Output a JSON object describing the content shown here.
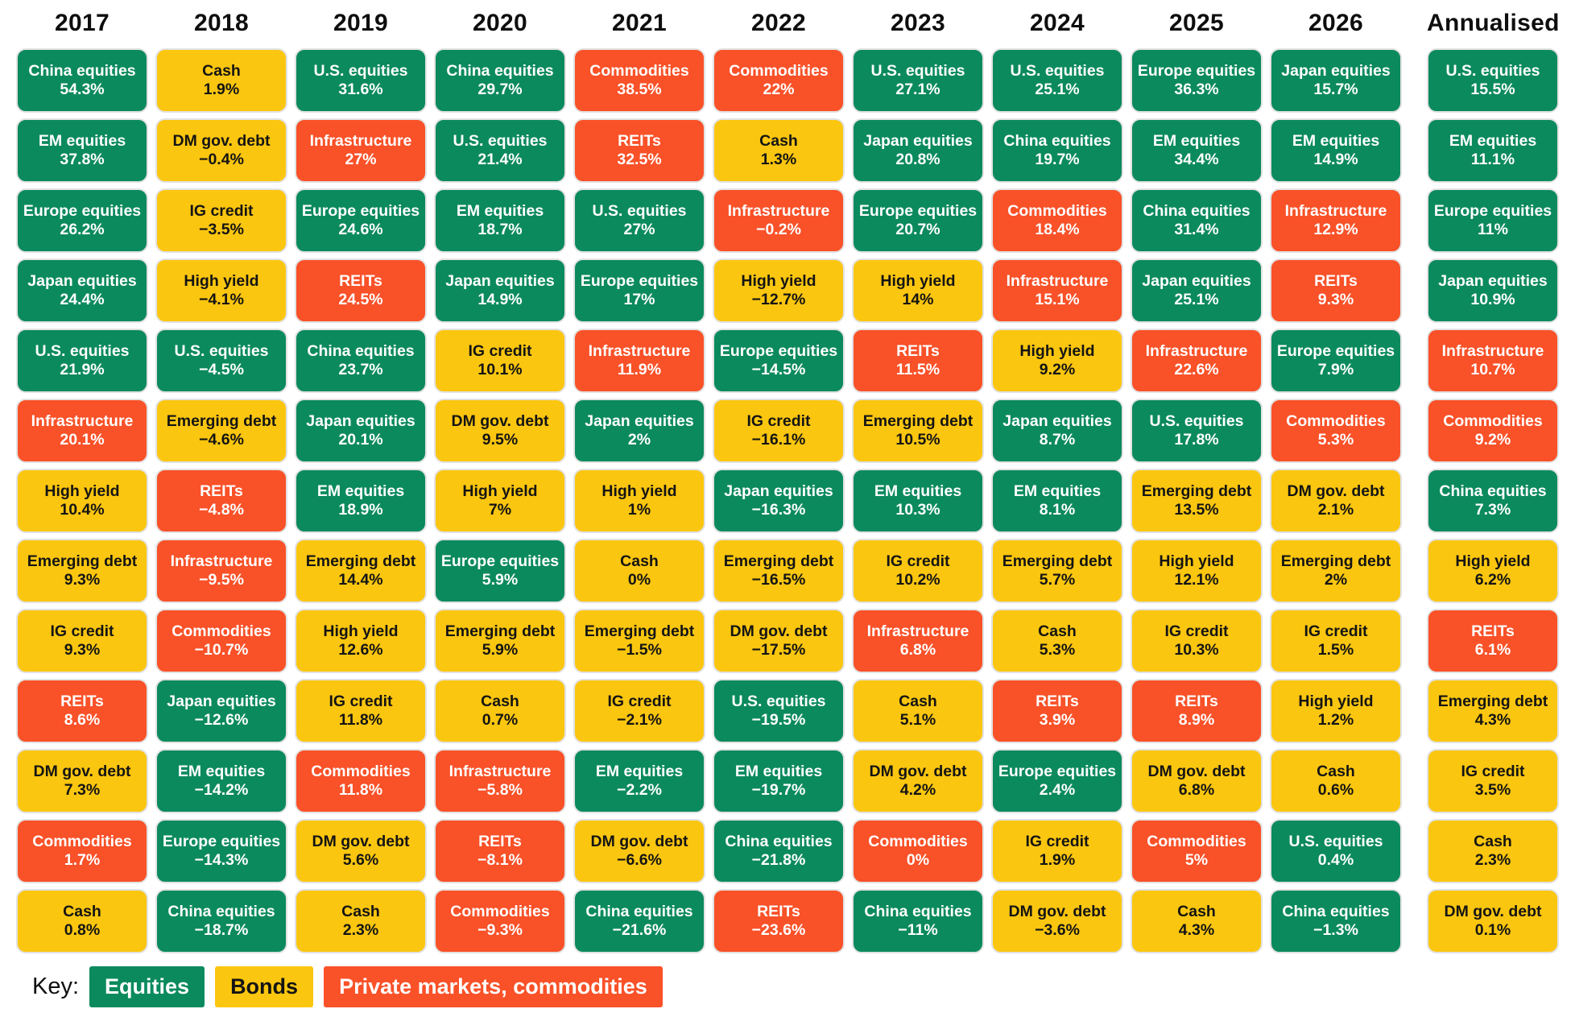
{
  "colors": {
    "equities": "#0b8a5e",
    "bonds": "#fbc60f",
    "private": "#f95128"
  },
  "key": {
    "label": "Key:",
    "items": [
      {
        "label": "Equities",
        "category": "equities"
      },
      {
        "label": "Bonds",
        "category": "bonds"
      },
      {
        "label": "Private markets, commodities",
        "category": "private"
      }
    ]
  },
  "asset_categories": {
    "China equities": "equities",
    "EM equities": "equities",
    "Europe equities": "equities",
    "Japan equities": "equities",
    "U.S. equities": "equities",
    "Cash": "bonds",
    "DM gov. debt": "bonds",
    "IG credit": "bonds",
    "High yield": "bonds",
    "Emerging debt": "bonds",
    "Infrastructure": "private",
    "REITs": "private",
    "Commodities": "private"
  },
  "chart_data": {
    "type": "table",
    "description_unit": "percent annual return",
    "column_headers": [
      "2017",
      "2018",
      "2019",
      "2020",
      "2021",
      "2022",
      "2023",
      "2024",
      "2025",
      "2026",
      "Annualised"
    ],
    "columns": [
      {
        "header": "2017",
        "cells": [
          [
            "China equities",
            54.3
          ],
          [
            "EM equities",
            37.8
          ],
          [
            "Europe equities",
            26.2
          ],
          [
            "Japan equities",
            24.4
          ],
          [
            "U.S. equities",
            21.9
          ],
          [
            "Infrastructure",
            20.1
          ],
          [
            "High yield",
            10.4
          ],
          [
            "Emerging debt",
            9.3
          ],
          [
            "IG credit",
            9.3
          ],
          [
            "REITs",
            8.6
          ],
          [
            "DM gov. debt",
            7.3
          ],
          [
            "Commodities",
            1.7
          ],
          [
            "Cash",
            0.8
          ]
        ]
      },
      {
        "header": "2018",
        "cells": [
          [
            "Cash",
            1.9
          ],
          [
            "DM gov. debt",
            -0.4
          ],
          [
            "IG credit",
            -3.5
          ],
          [
            "High yield",
            -4.1
          ],
          [
            "U.S. equities",
            -4.5
          ],
          [
            "Emerging debt",
            -4.6
          ],
          [
            "REITs",
            -4.8
          ],
          [
            "Infrastructure",
            -9.5
          ],
          [
            "Commodities",
            -10.7
          ],
          [
            "Japan equities",
            -12.6
          ],
          [
            "EM equities",
            -14.2
          ],
          [
            "Europe equities",
            -14.3
          ],
          [
            "China equities",
            -18.7
          ]
        ]
      },
      {
        "header": "2019",
        "cells": [
          [
            "U.S. equities",
            31.6
          ],
          [
            "Infrastructure",
            27
          ],
          [
            "Europe equities",
            24.6
          ],
          [
            "REITs",
            24.5
          ],
          [
            "China equities",
            23.7
          ],
          [
            "Japan equities",
            20.1
          ],
          [
            "EM equities",
            18.9
          ],
          [
            "Emerging debt",
            14.4
          ],
          [
            "High yield",
            12.6
          ],
          [
            "IG credit",
            11.8
          ],
          [
            "Commodities",
            11.8
          ],
          [
            "DM gov. debt",
            5.6
          ],
          [
            "Cash",
            2.3
          ]
        ]
      },
      {
        "header": "2020",
        "cells": [
          [
            "China equities",
            29.7
          ],
          [
            "U.S. equities",
            21.4
          ],
          [
            "EM equities",
            18.7
          ],
          [
            "Japan equities",
            14.9
          ],
          [
            "IG credit",
            10.1
          ],
          [
            "DM gov. debt",
            9.5
          ],
          [
            "High yield",
            7
          ],
          [
            "Europe equities",
            5.9
          ],
          [
            "Emerging debt",
            5.9
          ],
          [
            "Cash",
            0.7
          ],
          [
            "Infrastructure",
            -5.8
          ],
          [
            "REITs",
            -8.1
          ],
          [
            "Commodities",
            -9.3
          ]
        ]
      },
      {
        "header": "2021",
        "cells": [
          [
            "Commodities",
            38.5
          ],
          [
            "REITs",
            32.5
          ],
          [
            "U.S. equities",
            27
          ],
          [
            "Europe equities",
            17
          ],
          [
            "Infrastructure",
            11.9
          ],
          [
            "Japan equities",
            2
          ],
          [
            "High yield",
            1
          ],
          [
            "Cash",
            0
          ],
          [
            "Emerging debt",
            -1.5
          ],
          [
            "IG credit",
            -2.1
          ],
          [
            "EM equities",
            -2.2
          ],
          [
            "DM gov. debt",
            -6.6
          ],
          [
            "China equities",
            -21.6
          ]
        ]
      },
      {
        "header": "2022",
        "cells": [
          [
            "Commodities",
            22
          ],
          [
            "Cash",
            1.3
          ],
          [
            "Infrastructure",
            -0.2
          ],
          [
            "High yield",
            -12.7
          ],
          [
            "Europe equities",
            -14.5
          ],
          [
            "IG credit",
            -16.1
          ],
          [
            "Japan equities",
            -16.3
          ],
          [
            "Emerging debt",
            -16.5
          ],
          [
            "DM gov. debt",
            -17.5
          ],
          [
            "U.S. equities",
            -19.5
          ],
          [
            "EM equities",
            -19.7
          ],
          [
            "China equities",
            -21.8
          ],
          [
            "REITs",
            -23.6
          ]
        ]
      },
      {
        "header": "2023",
        "cells": [
          [
            "U.S. equities",
            27.1
          ],
          [
            "Japan equities",
            20.8
          ],
          [
            "Europe equities",
            20.7
          ],
          [
            "High yield",
            14
          ],
          [
            "REITs",
            11.5
          ],
          [
            "Emerging debt",
            10.5
          ],
          [
            "EM equities",
            10.3
          ],
          [
            "IG credit",
            10.2
          ],
          [
            "Infrastructure",
            6.8
          ],
          [
            "Cash",
            5.1
          ],
          [
            "DM gov. debt",
            4.2
          ],
          [
            "Commodities",
            0
          ],
          [
            "China equities",
            -11
          ]
        ]
      },
      {
        "header": "2024",
        "cells": [
          [
            "U.S. equities",
            25.1
          ],
          [
            "China equities",
            19.7
          ],
          [
            "Commodities",
            18.4
          ],
          [
            "Infrastructure",
            15.1
          ],
          [
            "High yield",
            9.2
          ],
          [
            "Japan equities",
            8.7
          ],
          [
            "EM equities",
            8.1
          ],
          [
            "Emerging debt",
            5.7
          ],
          [
            "Cash",
            5.3
          ],
          [
            "REITs",
            3.9
          ],
          [
            "Europe equities",
            2.4
          ],
          [
            "IG credit",
            1.9
          ],
          [
            "DM gov. debt",
            -3.6
          ]
        ]
      },
      {
        "header": "2025",
        "cells": [
          [
            "Europe equities",
            36.3
          ],
          [
            "EM equities",
            34.4
          ],
          [
            "China equities",
            31.4
          ],
          [
            "Japan equities",
            25.1
          ],
          [
            "Infrastructure",
            22.6
          ],
          [
            "U.S. equities",
            17.8
          ],
          [
            "Emerging debt",
            13.5
          ],
          [
            "High yield",
            12.1
          ],
          [
            "IG credit",
            10.3
          ],
          [
            "REITs",
            8.9
          ],
          [
            "DM gov. debt",
            6.8
          ],
          [
            "Commodities",
            5
          ],
          [
            "Cash",
            4.3
          ]
        ]
      },
      {
        "header": "2026",
        "cells": [
          [
            "Japan equities",
            15.7
          ],
          [
            "EM equities",
            14.9
          ],
          [
            "Infrastructure",
            12.9
          ],
          [
            "REITs",
            9.3
          ],
          [
            "Europe equities",
            7.9
          ],
          [
            "Commodities",
            5.3
          ],
          [
            "DM gov. debt",
            2.1
          ],
          [
            "Emerging debt",
            2
          ],
          [
            "IG credit",
            1.5
          ],
          [
            "High yield",
            1.2
          ],
          [
            "Cash",
            0.6
          ],
          [
            "U.S. equities",
            0.4
          ],
          [
            "China equities",
            -1.3
          ]
        ]
      },
      {
        "header": "Annualised",
        "cells": [
          [
            "U.S. equities",
            15.5
          ],
          [
            "EM equities",
            11.1
          ],
          [
            "Europe equities",
            11
          ],
          [
            "Japan equities",
            10.9
          ],
          [
            "Infrastructure",
            10.7
          ],
          [
            "Commodities",
            9.2
          ],
          [
            "China equities",
            7.3
          ],
          [
            "High yield",
            6.2
          ],
          [
            "REITs",
            6.1
          ],
          [
            "Emerging debt",
            4.3
          ],
          [
            "IG credit",
            3.5
          ],
          [
            "Cash",
            2.3
          ],
          [
            "DM gov. debt",
            0.1
          ]
        ]
      }
    ]
  }
}
